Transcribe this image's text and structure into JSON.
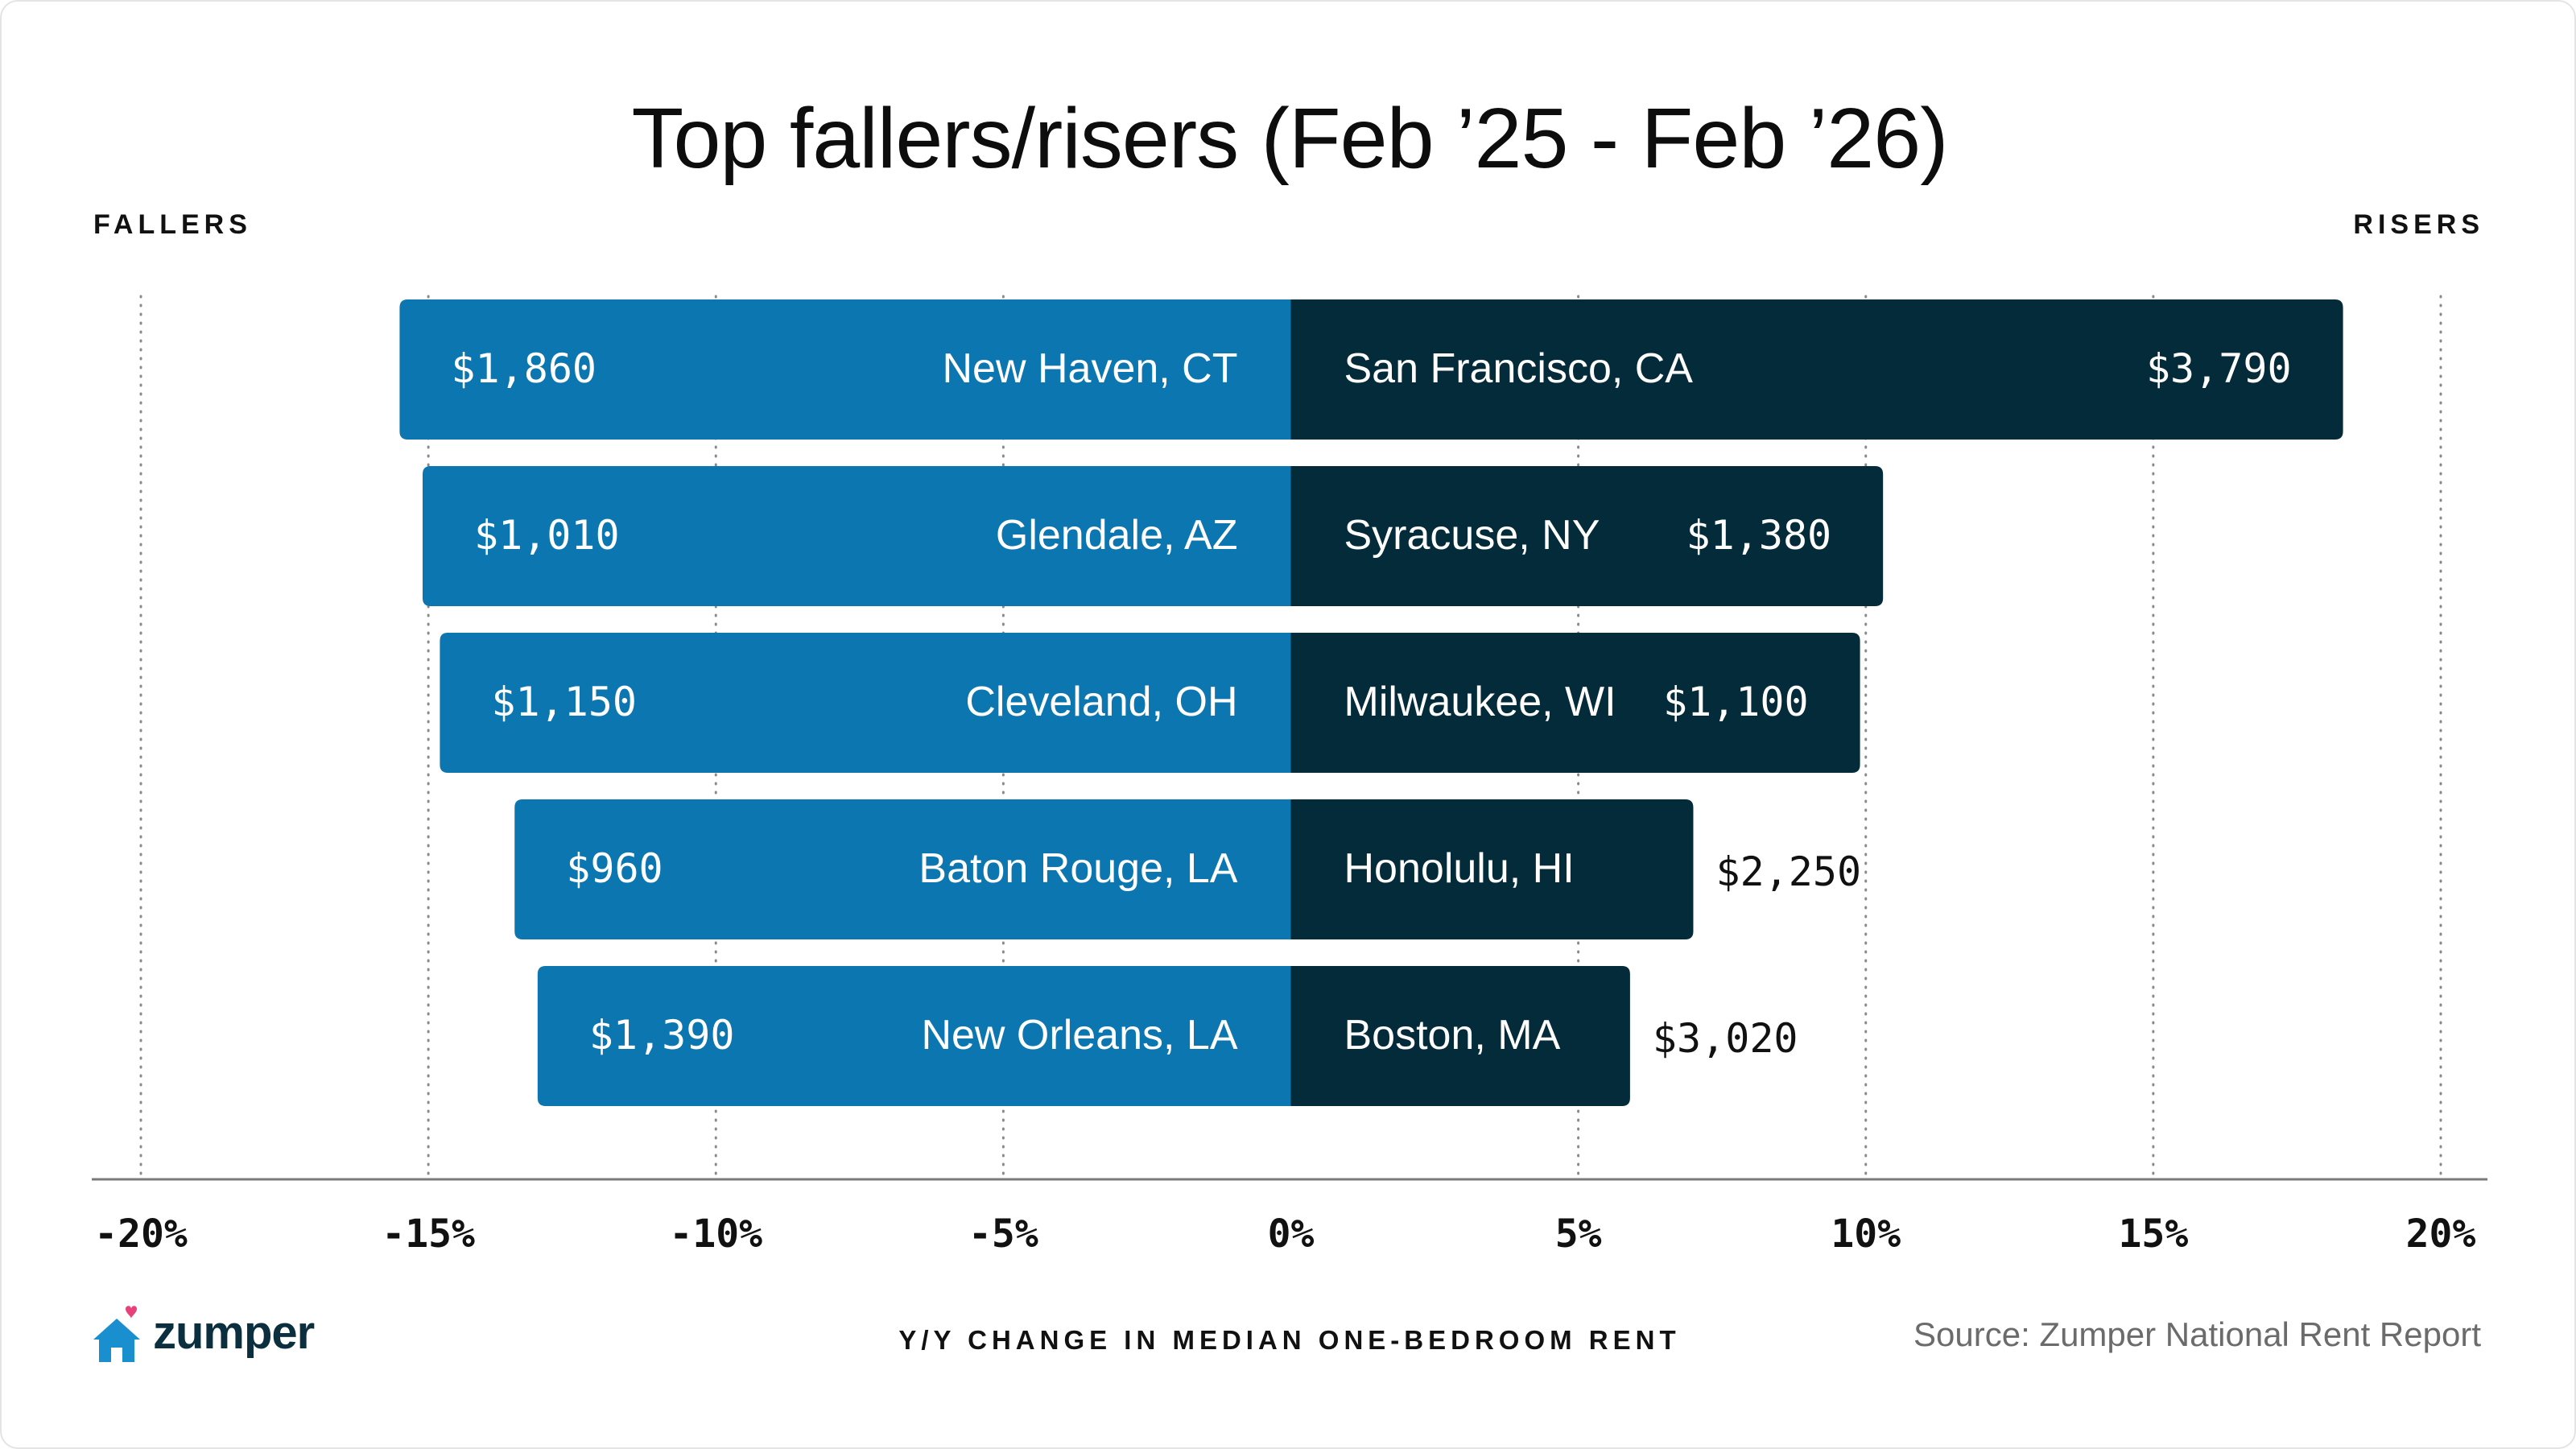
{
  "title": "Top fallers/risers (Feb ’25 - Feb ’26)",
  "fallers_label": "FALLERS",
  "risers_label": "RISERS",
  "brand": {
    "name": "zumper",
    "icon": "house-heart-icon"
  },
  "source": "Source: Zumper National Rent Report",
  "colors": {
    "fallers": "#0c76b0",
    "risers": "#032b3a",
    "axis": "#7a7a7a",
    "grid": "#8a8a8a",
    "text_dark": "#111111",
    "brand_heart": "#e8417a",
    "brand_house": "#1a8fd0"
  },
  "chart_data": {
    "type": "bar",
    "orientation": "horizontal-diverging",
    "xlabel": "Y/Y CHANGE IN MEDIAN ONE-BEDROOM RENT",
    "xlim": [
      -20,
      20
    ],
    "xticks": [
      -20,
      -15,
      -10,
      -5,
      0,
      5,
      10,
      15,
      20
    ],
    "xtick_labels": [
      "-20%",
      "-15%",
      "-10%",
      "-5%",
      "0%",
      "5%",
      "10%",
      "15%",
      "20%"
    ],
    "grid": "vertical dotted",
    "series": [
      {
        "name": "FALLERS",
        "categories": [
          "New Haven, CT",
          "Glendale, AZ",
          "Cleveland, OH",
          "Baton Rouge, LA",
          "New Orleans, LA"
        ],
        "values": [
          -15.5,
          -15.1,
          -14.8,
          -13.5,
          -13.1
        ],
        "rents": [
          "$1,860",
          "$1,010",
          "$1,150",
          "$960",
          "$1,390"
        ]
      },
      {
        "name": "RISERS",
        "categories": [
          "San Francisco, CA",
          "Syracuse, NY",
          "Milwaukee, WI",
          "Honolulu, HI",
          "Boston, MA"
        ],
        "values": [
          18.3,
          10.3,
          9.9,
          7.0,
          5.9
        ],
        "rents": [
          "$3,790",
          "$1,380",
          "$1,100",
          "$2,250",
          "$3,020"
        ]
      }
    ]
  }
}
